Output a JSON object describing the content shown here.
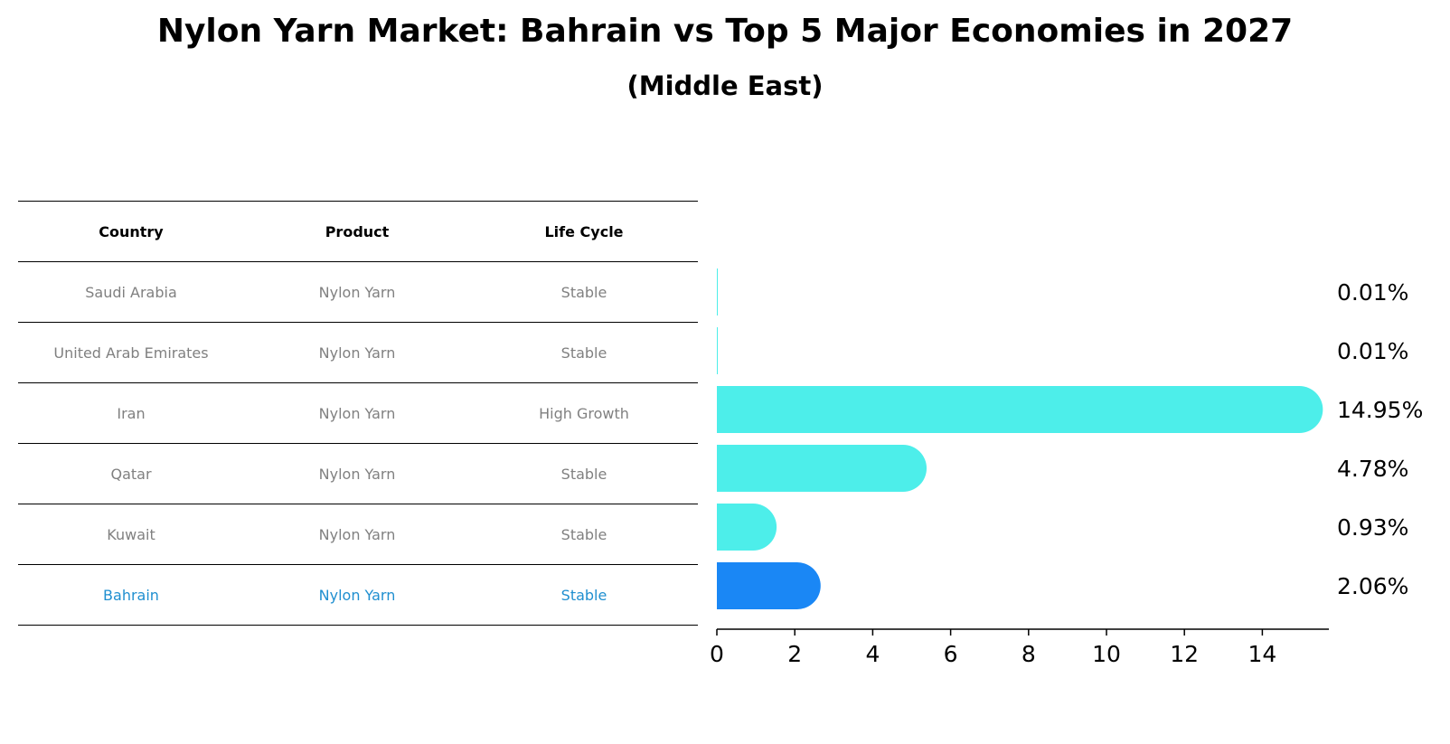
{
  "title": "Nylon Yarn Market: Bahrain vs Top 5 Major Economies in 2027",
  "subtitle": "(Middle East)",
  "table": {
    "headers": [
      "Country",
      "Product",
      "Life Cycle"
    ],
    "rows": [
      [
        "Saudi Arabia",
        "Nylon Yarn",
        "Stable"
      ],
      [
        "United Arab Emirates",
        "Nylon Yarn",
        "Stable"
      ],
      [
        "Iran",
        "Nylon Yarn",
        "High Growth"
      ],
      [
        "Qatar",
        "Nylon Yarn",
        "Stable"
      ],
      [
        "Kuwait",
        "Nylon Yarn",
        "Stable"
      ],
      [
        "Bahrain",
        "Nylon Yarn",
        "Stable"
      ]
    ],
    "highlight_row": 5
  },
  "chart_data": {
    "type": "bar",
    "orientation": "horizontal",
    "categories": [
      "Saudi Arabia",
      "United Arab Emirates",
      "Iran",
      "Qatar",
      "Kuwait",
      "Bahrain"
    ],
    "values": [
      0.01,
      0.01,
      14.95,
      4.78,
      0.93,
      2.06
    ],
    "value_labels": [
      "0.01%",
      "0.01%",
      "14.95%",
      "4.78%",
      "0.93%",
      "2.06%"
    ],
    "xticks": [
      0,
      2,
      4,
      6,
      8,
      10,
      12,
      14
    ],
    "xlim": [
      0,
      15.7
    ],
    "highlight_index": 5,
    "colors": {
      "bar": "#4deeea",
      "highlight": "#1a87f5"
    }
  }
}
